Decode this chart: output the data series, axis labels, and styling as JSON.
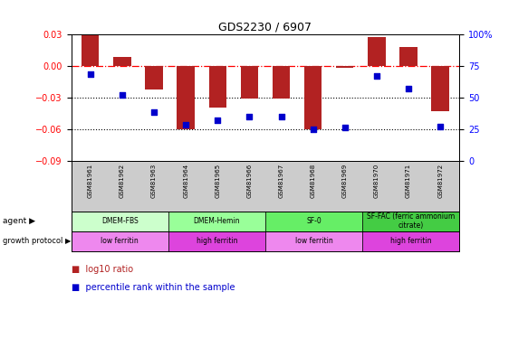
{
  "title": "GDS2230 / 6907",
  "samples": [
    "GSM81961",
    "GSM81962",
    "GSM81963",
    "GSM81964",
    "GSM81965",
    "GSM81966",
    "GSM81967",
    "GSM81968",
    "GSM81969",
    "GSM81970",
    "GSM81971",
    "GSM81972"
  ],
  "log10_ratio": [
    0.029,
    0.008,
    -0.023,
    -0.06,
    -0.04,
    -0.031,
    -0.031,
    -0.06,
    -0.002,
    0.027,
    0.018,
    -0.043
  ],
  "percentile_rank": [
    68,
    52,
    38,
    28,
    32,
    35,
    35,
    25,
    26,
    67,
    57,
    27
  ],
  "ylim_left": [
    -0.09,
    0.03
  ],
  "ylim_right": [
    0,
    100
  ],
  "yticks_left": [
    -0.09,
    -0.06,
    -0.03,
    0.0,
    0.03
  ],
  "yticks_right": [
    0,
    25,
    50,
    75,
    100
  ],
  "hline_y": 0.0,
  "dotline1": -0.03,
  "dotline2": -0.06,
  "bar_color": "#b22222",
  "point_color": "#0000cc",
  "agent_groups": [
    {
      "label": "DMEM-FBS",
      "start": 0,
      "end": 3,
      "color": "#ccffcc"
    },
    {
      "label": "DMEM-Hemin",
      "start": 3,
      "end": 6,
      "color": "#99ff99"
    },
    {
      "label": "SF-0",
      "start": 6,
      "end": 9,
      "color": "#66ee66"
    },
    {
      "label": "SF-FAC (ferric ammonium\ncitrate)",
      "start": 9,
      "end": 12,
      "color": "#44cc44"
    }
  ],
  "protocol_groups": [
    {
      "label": "low ferritin",
      "start": 0,
      "end": 3,
      "color": "#ee88ee"
    },
    {
      "label": "high ferritin",
      "start": 3,
      "end": 6,
      "color": "#dd44dd"
    },
    {
      "label": "low ferritin",
      "start": 6,
      "end": 9,
      "color": "#ee88ee"
    },
    {
      "label": "high ferritin",
      "start": 9,
      "end": 12,
      "color": "#dd44dd"
    }
  ],
  "legend_bar_label": "log10 ratio",
  "legend_point_label": "percentile rank within the sample",
  "xtick_bg": "#cccccc",
  "background_color": "#ffffff"
}
